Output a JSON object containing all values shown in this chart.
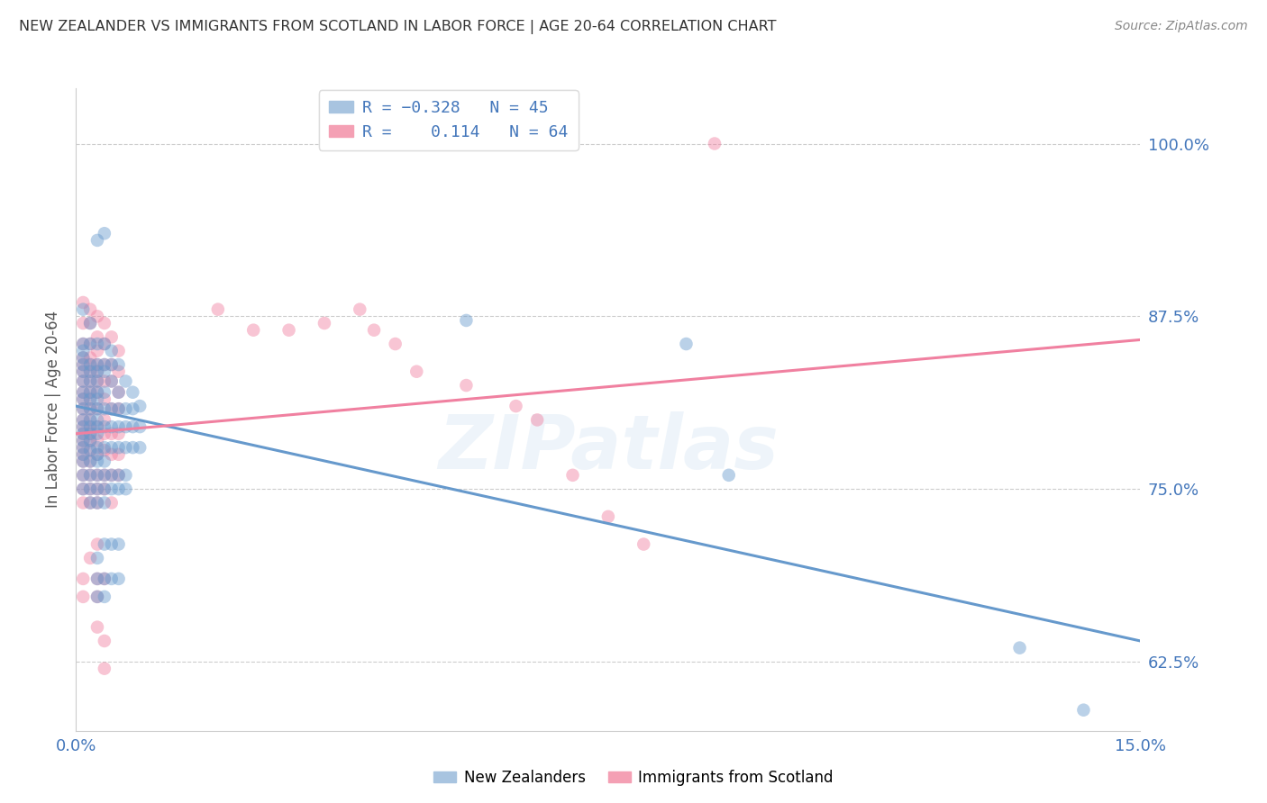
{
  "title": "NEW ZEALANDER VS IMMIGRANTS FROM SCOTLAND IN LABOR FORCE | AGE 20-64 CORRELATION CHART",
  "source": "Source: ZipAtlas.com",
  "ylabel": "In Labor Force | Age 20-64",
  "ytick_vals": [
    0.625,
    0.75,
    0.875,
    1.0
  ],
  "ytick_labels": [
    "62.5%",
    "75.0%",
    "87.5%",
    "100.0%"
  ],
  "xlim": [
    0.0,
    0.15
  ],
  "ylim": [
    0.575,
    1.04
  ],
  "blue_color": "#6699cc",
  "pink_color": "#f080a0",
  "blue_scatter": [
    [
      0.001,
      0.88
    ],
    [
      0.001,
      0.855
    ],
    [
      0.001,
      0.85
    ],
    [
      0.001,
      0.845
    ],
    [
      0.001,
      0.84
    ],
    [
      0.001,
      0.835
    ],
    [
      0.001,
      0.828
    ],
    [
      0.001,
      0.82
    ],
    [
      0.001,
      0.815
    ],
    [
      0.001,
      0.808
    ],
    [
      0.001,
      0.8
    ],
    [
      0.001,
      0.795
    ],
    [
      0.001,
      0.79
    ],
    [
      0.001,
      0.785
    ],
    [
      0.001,
      0.78
    ],
    [
      0.001,
      0.775
    ],
    [
      0.001,
      0.77
    ],
    [
      0.001,
      0.76
    ],
    [
      0.001,
      0.75
    ],
    [
      0.002,
      0.87
    ],
    [
      0.002,
      0.855
    ],
    [
      0.002,
      0.84
    ],
    [
      0.002,
      0.835
    ],
    [
      0.002,
      0.828
    ],
    [
      0.002,
      0.82
    ],
    [
      0.002,
      0.815
    ],
    [
      0.002,
      0.808
    ],
    [
      0.002,
      0.8
    ],
    [
      0.002,
      0.795
    ],
    [
      0.002,
      0.79
    ],
    [
      0.002,
      0.785
    ],
    [
      0.002,
      0.778
    ],
    [
      0.002,
      0.77
    ],
    [
      0.002,
      0.76
    ],
    [
      0.002,
      0.75
    ],
    [
      0.002,
      0.74
    ],
    [
      0.003,
      0.93
    ],
    [
      0.003,
      0.855
    ],
    [
      0.003,
      0.84
    ],
    [
      0.003,
      0.835
    ],
    [
      0.003,
      0.828
    ],
    [
      0.003,
      0.82
    ],
    [
      0.003,
      0.815
    ],
    [
      0.003,
      0.808
    ],
    [
      0.003,
      0.8
    ],
    [
      0.003,
      0.795
    ],
    [
      0.003,
      0.79
    ],
    [
      0.003,
      0.78
    ],
    [
      0.003,
      0.775
    ],
    [
      0.003,
      0.77
    ],
    [
      0.003,
      0.76
    ],
    [
      0.003,
      0.75
    ],
    [
      0.003,
      0.74
    ],
    [
      0.003,
      0.7
    ],
    [
      0.003,
      0.685
    ],
    [
      0.003,
      0.672
    ],
    [
      0.004,
      0.855
    ],
    [
      0.004,
      0.84
    ],
    [
      0.004,
      0.835
    ],
    [
      0.004,
      0.82
    ],
    [
      0.004,
      0.808
    ],
    [
      0.004,
      0.795
    ],
    [
      0.004,
      0.78
    ],
    [
      0.004,
      0.77
    ],
    [
      0.004,
      0.76
    ],
    [
      0.004,
      0.75
    ],
    [
      0.004,
      0.74
    ],
    [
      0.004,
      0.71
    ],
    [
      0.004,
      0.685
    ],
    [
      0.004,
      0.672
    ],
    [
      0.005,
      0.85
    ],
    [
      0.005,
      0.84
    ],
    [
      0.005,
      0.828
    ],
    [
      0.005,
      0.808
    ],
    [
      0.005,
      0.795
    ],
    [
      0.005,
      0.78
    ],
    [
      0.005,
      0.76
    ],
    [
      0.005,
      0.75
    ],
    [
      0.005,
      0.71
    ],
    [
      0.005,
      0.685
    ],
    [
      0.006,
      0.84
    ],
    [
      0.006,
      0.82
    ],
    [
      0.006,
      0.808
    ],
    [
      0.006,
      0.795
    ],
    [
      0.006,
      0.78
    ],
    [
      0.006,
      0.76
    ],
    [
      0.006,
      0.75
    ],
    [
      0.006,
      0.71
    ],
    [
      0.006,
      0.685
    ],
    [
      0.007,
      0.828
    ],
    [
      0.007,
      0.808
    ],
    [
      0.007,
      0.795
    ],
    [
      0.007,
      0.78
    ],
    [
      0.007,
      0.76
    ],
    [
      0.007,
      0.75
    ],
    [
      0.008,
      0.82
    ],
    [
      0.008,
      0.808
    ],
    [
      0.008,
      0.795
    ],
    [
      0.008,
      0.78
    ],
    [
      0.009,
      0.81
    ],
    [
      0.009,
      0.795
    ],
    [
      0.009,
      0.78
    ],
    [
      0.004,
      0.935
    ],
    [
      0.055,
      0.872
    ],
    [
      0.086,
      0.855
    ],
    [
      0.092,
      0.76
    ],
    [
      0.133,
      0.635
    ],
    [
      0.142,
      0.59
    ]
  ],
  "pink_scatter": [
    [
      0.001,
      0.885
    ],
    [
      0.001,
      0.87
    ],
    [
      0.001,
      0.855
    ],
    [
      0.001,
      0.845
    ],
    [
      0.001,
      0.84
    ],
    [
      0.001,
      0.835
    ],
    [
      0.001,
      0.828
    ],
    [
      0.001,
      0.82
    ],
    [
      0.001,
      0.815
    ],
    [
      0.001,
      0.808
    ],
    [
      0.001,
      0.8
    ],
    [
      0.001,
      0.795
    ],
    [
      0.001,
      0.79
    ],
    [
      0.001,
      0.785
    ],
    [
      0.001,
      0.78
    ],
    [
      0.001,
      0.775
    ],
    [
      0.001,
      0.77
    ],
    [
      0.001,
      0.76
    ],
    [
      0.001,
      0.75
    ],
    [
      0.001,
      0.74
    ],
    [
      0.001,
      0.685
    ],
    [
      0.001,
      0.672
    ],
    [
      0.002,
      0.88
    ],
    [
      0.002,
      0.87
    ],
    [
      0.002,
      0.855
    ],
    [
      0.002,
      0.845
    ],
    [
      0.002,
      0.84
    ],
    [
      0.002,
      0.835
    ],
    [
      0.002,
      0.828
    ],
    [
      0.002,
      0.82
    ],
    [
      0.002,
      0.815
    ],
    [
      0.002,
      0.808
    ],
    [
      0.002,
      0.8
    ],
    [
      0.002,
      0.795
    ],
    [
      0.002,
      0.79
    ],
    [
      0.002,
      0.785
    ],
    [
      0.002,
      0.778
    ],
    [
      0.002,
      0.77
    ],
    [
      0.002,
      0.76
    ],
    [
      0.002,
      0.75
    ],
    [
      0.002,
      0.74
    ],
    [
      0.002,
      0.7
    ],
    [
      0.003,
      0.875
    ],
    [
      0.003,
      0.86
    ],
    [
      0.003,
      0.85
    ],
    [
      0.003,
      0.84
    ],
    [
      0.003,
      0.835
    ],
    [
      0.003,
      0.828
    ],
    [
      0.003,
      0.82
    ],
    [
      0.003,
      0.808
    ],
    [
      0.003,
      0.795
    ],
    [
      0.003,
      0.785
    ],
    [
      0.003,
      0.775
    ],
    [
      0.003,
      0.76
    ],
    [
      0.003,
      0.75
    ],
    [
      0.003,
      0.74
    ],
    [
      0.003,
      0.71
    ],
    [
      0.003,
      0.685
    ],
    [
      0.003,
      0.672
    ],
    [
      0.003,
      0.65
    ],
    [
      0.004,
      0.87
    ],
    [
      0.004,
      0.855
    ],
    [
      0.004,
      0.84
    ],
    [
      0.004,
      0.828
    ],
    [
      0.004,
      0.815
    ],
    [
      0.004,
      0.8
    ],
    [
      0.004,
      0.79
    ],
    [
      0.004,
      0.778
    ],
    [
      0.004,
      0.76
    ],
    [
      0.004,
      0.75
    ],
    [
      0.004,
      0.685
    ],
    [
      0.004,
      0.64
    ],
    [
      0.004,
      0.62
    ],
    [
      0.005,
      0.86
    ],
    [
      0.005,
      0.84
    ],
    [
      0.005,
      0.828
    ],
    [
      0.005,
      0.808
    ],
    [
      0.005,
      0.79
    ],
    [
      0.005,
      0.775
    ],
    [
      0.005,
      0.76
    ],
    [
      0.005,
      0.74
    ],
    [
      0.006,
      0.85
    ],
    [
      0.006,
      0.835
    ],
    [
      0.006,
      0.82
    ],
    [
      0.006,
      0.808
    ],
    [
      0.006,
      0.79
    ],
    [
      0.006,
      0.775
    ],
    [
      0.006,
      0.76
    ],
    [
      0.02,
      0.88
    ],
    [
      0.025,
      0.865
    ],
    [
      0.03,
      0.865
    ],
    [
      0.035,
      0.87
    ],
    [
      0.04,
      0.88
    ],
    [
      0.042,
      0.865
    ],
    [
      0.045,
      0.855
    ],
    [
      0.048,
      0.835
    ],
    [
      0.055,
      0.825
    ],
    [
      0.062,
      0.81
    ],
    [
      0.065,
      0.8
    ],
    [
      0.07,
      0.76
    ],
    [
      0.075,
      0.73
    ],
    [
      0.08,
      0.71
    ],
    [
      0.09,
      1.0
    ]
  ],
  "blue_line_x": [
    0.0,
    0.15
  ],
  "blue_line_y": [
    0.81,
    0.64
  ],
  "pink_line_x": [
    0.0,
    0.15
  ],
  "pink_line_y": [
    0.79,
    0.858
  ],
  "watermark": "ZIPatlas",
  "background_color": "#ffffff",
  "grid_color": "#cccccc",
  "title_color": "#333333",
  "axis_tick_color": "#4477bb",
  "ylabel_color": "#555555"
}
